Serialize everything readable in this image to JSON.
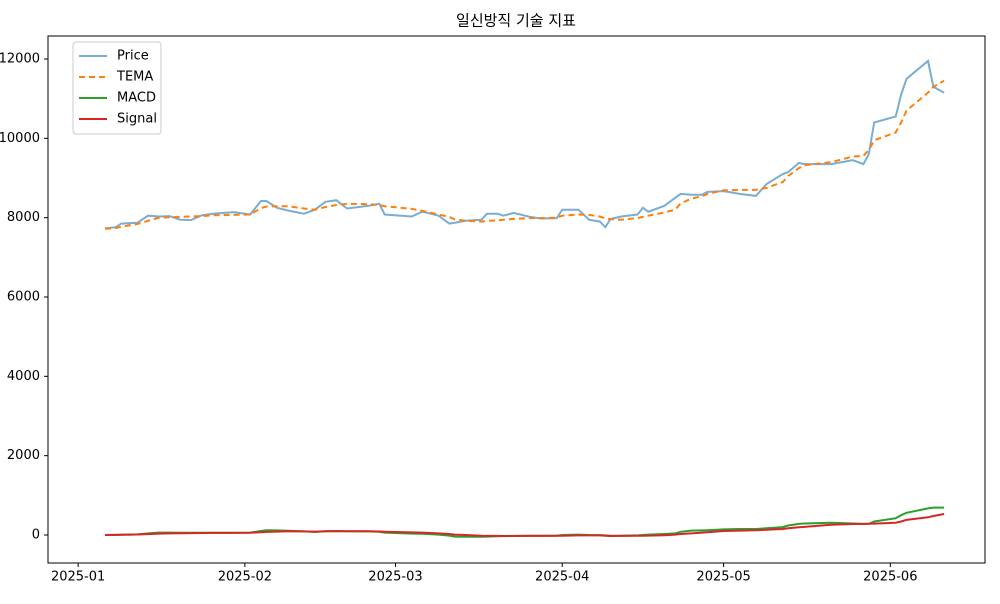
{
  "chart_data": {
    "type": "line",
    "title": "일신방직 기술 지표",
    "x": [
      20094,
      20096,
      20097,
      20100,
      20102,
      20104,
      20106,
      20108,
      20110,
      20112,
      20114,
      20118,
      20121,
      20123,
      20124,
      20126,
      20128,
      20131,
      20133,
      20135,
      20137,
      20139,
      20143,
      20145,
      20146,
      20151,
      20153,
      20156,
      20158,
      20159,
      20161,
      20164,
      20165,
      20167,
      20168,
      20170,
      20173,
      20175,
      20178,
      20179,
      20182,
      20184,
      20186,
      20187,
      20188,
      20190,
      20193,
      20194,
      20195,
      20198,
      20200,
      20201,
      20203,
      20205,
      20206,
      20209,
      20212,
      20215,
      20217,
      20220,
      20221,
      20223,
      20224,
      20229,
      20233,
      20235,
      20236,
      20237,
      20241,
      20242,
      20243,
      20247,
      20248,
      20250
    ],
    "series": [
      {
        "name": "Price",
        "color": "#1f77b4",
        "alpha": 0.6,
        "linestyle": "-",
        "values": [
          7730,
          7760,
          7850,
          7870,
          8050,
          8030,
          8040,
          7950,
          7940,
          8060,
          8100,
          8140,
          8080,
          8420,
          8420,
          8250,
          8180,
          8100,
          8200,
          8400,
          8440,
          8230,
          8300,
          8350,
          8080,
          8030,
          8150,
          8050,
          7850,
          7870,
          7920,
          7950,
          8100,
          8100,
          8050,
          8120,
          8020,
          7980,
          7990,
          8200,
          8200,
          7950,
          7900,
          7760,
          7970,
          8030,
          8080,
          8250,
          8150,
          8300,
          8500,
          8600,
          8580,
          8580,
          8650,
          8670,
          8600,
          8550,
          8850,
          9100,
          9150,
          9380,
          9350,
          9350,
          9450,
          9350,
          9600,
          10400,
          10550,
          11100,
          11500,
          11950,
          11300,
          11150
        ]
      },
      {
        "name": "TEMA",
        "color": "#ff7f0e",
        "alpha": 1,
        "linestyle": "--",
        "values": [
          7720,
          7740,
          7770,
          7840,
          7920,
          8000,
          8010,
          8020,
          8030,
          8040,
          8060,
          8070,
          8080,
          8240,
          8280,
          8290,
          8290,
          8230,
          8200,
          8270,
          8320,
          8350,
          8340,
          8320,
          8290,
          8220,
          8170,
          8080,
          8020,
          7960,
          7920,
          7900,
          7920,
          7930,
          7950,
          7970,
          7990,
          7990,
          8000,
          8050,
          8080,
          8070,
          8030,
          7980,
          7960,
          7950,
          7990,
          8020,
          8050,
          8130,
          8200,
          8360,
          8480,
          8540,
          8600,
          8690,
          8700,
          8700,
          8750,
          8900,
          9050,
          9250,
          9320,
          9400,
          9540,
          9560,
          9700,
          9950,
          10150,
          10400,
          10700,
          11150,
          11300,
          11450
        ]
      },
      {
        "name": "MACD",
        "color": "#2ca02c",
        "alpha": 1,
        "linestyle": "-",
        "values": [
          0,
          3,
          6,
          15,
          40,
          60,
          60,
          58,
          56,
          55,
          57,
          58,
          60,
          100,
          120,
          115,
          105,
          90,
          75,
          95,
          100,
          95,
          90,
          80,
          60,
          35,
          30,
          10,
          -15,
          -40,
          -43,
          -45,
          -40,
          -32,
          -28,
          -24,
          -20,
          -20,
          -20,
          0,
          10,
          0,
          -3,
          -10,
          -20,
          -20,
          -10,
          0,
          10,
          25,
          40,
          80,
          110,
          115,
          120,
          140,
          150,
          150,
          170,
          200,
          240,
          280,
          290,
          310,
          290,
          280,
          280,
          340,
          420,
          500,
          560,
          670,
          690,
          690
        ]
      },
      {
        "name": "Signal",
        "color": "#d62728",
        "alpha": 1,
        "linestyle": "-",
        "values": [
          0,
          3,
          6,
          12,
          22,
          35,
          40,
          43,
          48,
          50,
          52,
          54,
          55,
          70,
          78,
          85,
          92,
          90,
          85,
          92,
          95,
          95,
          92,
          88,
          82,
          65,
          60,
          40,
          25,
          10,
          0,
          -20,
          -22,
          -24,
          -25,
          -25,
          -24,
          -23,
          -21,
          -18,
          -10,
          -10,
          -10,
          -20,
          -25,
          -24,
          -20,
          -17,
          -14,
          -5,
          10,
          25,
          40,
          60,
          70,
          100,
          110,
          120,
          130,
          150,
          170,
          195,
          205,
          260,
          278,
          280,
          282,
          288,
          310,
          340,
          380,
          445,
          480,
          530
        ]
      }
    ],
    "xlim": [
      20083.4,
      20257.6
    ],
    "xticks": [
      {
        "value": 20089,
        "label": "2025-01"
      },
      {
        "value": 20120,
        "label": "2025-02"
      },
      {
        "value": 20148,
        "label": "2025-03"
      },
      {
        "value": 20179,
        "label": "2025-04"
      },
      {
        "value": 20209,
        "label": "2025-05"
      },
      {
        "value": 20240,
        "label": "2025-06"
      }
    ],
    "ylim": [
      -706,
      12580
    ],
    "yticks": [
      0,
      2000,
      4000,
      6000,
      8000,
      10000,
      12000
    ],
    "grid": false,
    "legend": "upper left"
  }
}
